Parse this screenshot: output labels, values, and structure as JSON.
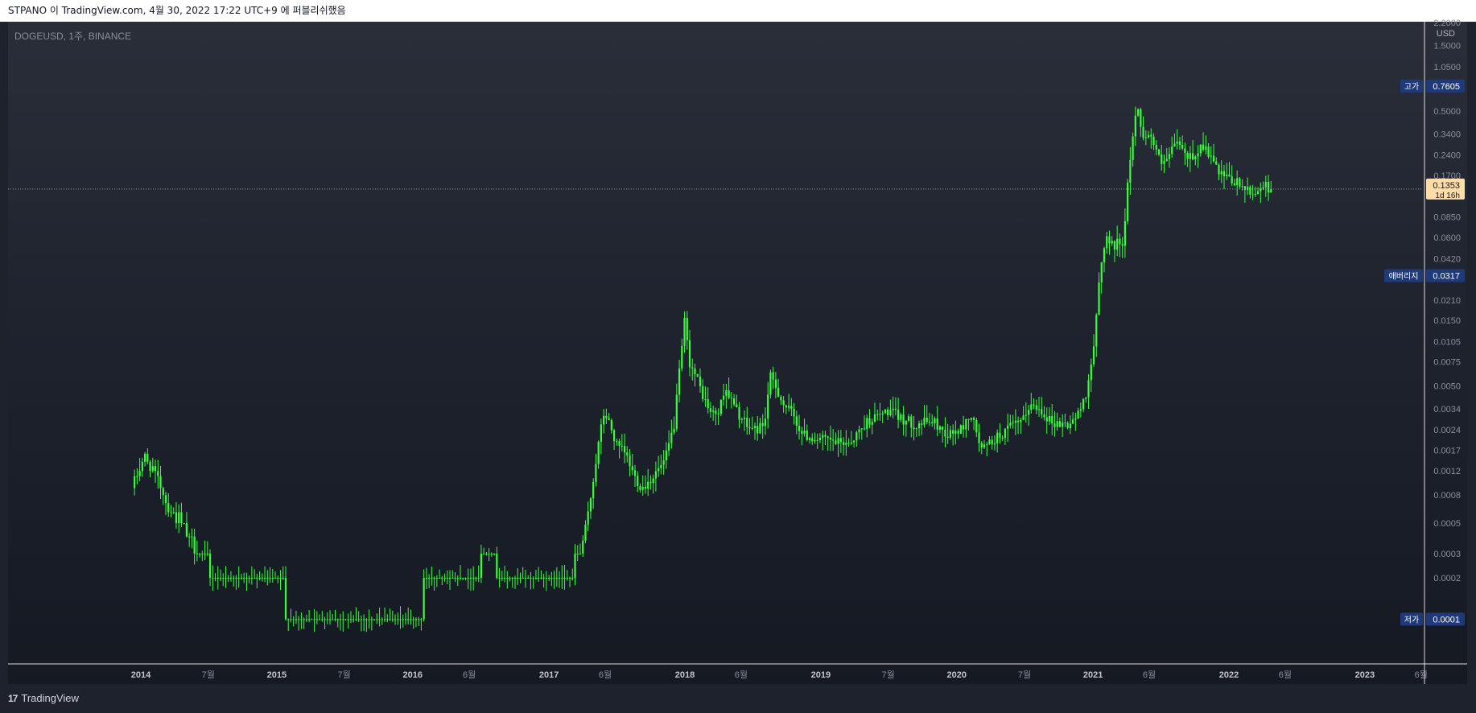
{
  "header": {
    "publish_text": "STPANO 이 TradingView.com, 4월 30, 2022 17:22 UTC+9 에 퍼블리쉬했음"
  },
  "symbol": {
    "label": "DOGEUSD, 1주, BINANCE"
  },
  "footer": {
    "brand_mark": "17",
    "brand_text": "TradingView"
  },
  "colors": {
    "candle": "#39ff3c",
    "axis_text": "#8a8f9c",
    "label_bg": "#1e3a7a",
    "price_bg": "#ffdca8",
    "crosshair": "#ffffff"
  },
  "chart_data": {
    "type": "candlestick",
    "symbol": "DOGEUSD",
    "interval": "1주",
    "exchange": "BINANCE",
    "y_scale": "log",
    "y_unit": "USD",
    "price_ticks": [
      "2.2000",
      "1.5000",
      "1.0500",
      "0.5000",
      "0.3400",
      "0.2400",
      "0.1700",
      "0.0850",
      "0.0600",
      "0.0420",
      "0.0210",
      "0.0150",
      "0.0105",
      "0.0075",
      "0.0050",
      "0.0034",
      "0.0024",
      "0.0017",
      "0.0012",
      "0.0008",
      "0.0005",
      "0.0003",
      "0.0002"
    ],
    "x_tick_labels": [
      {
        "label": "2014",
        "date": "2014-01-01",
        "bold": true
      },
      {
        "label": "7월",
        "date": "2014-07-01",
        "bold": false
      },
      {
        "label": "2015",
        "date": "2015-01-01",
        "bold": true
      },
      {
        "label": "7월",
        "date": "2015-07-01",
        "bold": false
      },
      {
        "label": "2016",
        "date": "2016-01-01",
        "bold": true
      },
      {
        "label": "6월",
        "date": "2016-06-01",
        "bold": false
      },
      {
        "label": "2017",
        "date": "2017-01-01",
        "bold": true
      },
      {
        "label": "6월",
        "date": "2017-06-01",
        "bold": false
      },
      {
        "label": "2018",
        "date": "2018-01-01",
        "bold": true
      },
      {
        "label": "6월",
        "date": "2018-06-01",
        "bold": false
      },
      {
        "label": "2019",
        "date": "2019-01-01",
        "bold": true
      },
      {
        "label": "7월",
        "date": "2019-07-01",
        "bold": false
      },
      {
        "label": "2020",
        "date": "2020-01-01",
        "bold": true
      },
      {
        "label": "7월",
        "date": "2020-07-01",
        "bold": false
      },
      {
        "label": "2021",
        "date": "2021-01-01",
        "bold": true
      },
      {
        "label": "6월",
        "date": "2021-06-01",
        "bold": false
      },
      {
        "label": "2022",
        "date": "2022-01-01",
        "bold": true
      },
      {
        "label": "6월",
        "date": "2022-06-01",
        "bold": false
      },
      {
        "label": "2023",
        "date": "2023-01-01",
        "bold": true
      },
      {
        "label": "6월",
        "date": "2023-06-01",
        "bold": false
      }
    ],
    "markers": [
      {
        "name": "고가",
        "value": "0.7605",
        "price": 0.7605,
        "style": "blue"
      },
      {
        "name": "",
        "value": "0.1353",
        "sub": "1d 16h",
        "price": 0.1353,
        "style": "current"
      },
      {
        "name": "애버리지",
        "value": "0.0317",
        "price": 0.0317,
        "style": "blue"
      },
      {
        "name": "저가",
        "value": "0.0001",
        "price": 0.0001,
        "style": "blue"
      }
    ],
    "price_path": [
      [
        "2013-12-15",
        0.0009
      ],
      [
        "2014-01-01",
        0.0012
      ],
      [
        "2014-01-20",
        0.0015
      ],
      [
        "2014-02-20",
        0.0011
      ],
      [
        "2014-03-20",
        0.0007
      ],
      [
        "2014-05-01",
        0.0005
      ],
      [
        "2014-06-01",
        0.0003
      ],
      [
        "2014-08-01",
        0.0002
      ],
      [
        "2014-10-01",
        0.0002
      ],
      [
        "2015-01-01",
        0.0002
      ],
      [
        "2015-03-01",
        0.0001
      ],
      [
        "2015-06-01",
        0.0001
      ],
      [
        "2015-09-01",
        0.0001
      ],
      [
        "2016-01-01",
        0.0001
      ],
      [
        "2016-03-01",
        0.0002
      ],
      [
        "2016-06-01",
        0.0002
      ],
      [
        "2016-08-01",
        0.0003
      ],
      [
        "2016-10-01",
        0.0002
      ],
      [
        "2017-01-01",
        0.0002
      ],
      [
        "2017-03-01",
        0.0002
      ],
      [
        "2017-04-01",
        0.0003
      ],
      [
        "2017-04-20",
        0.0005
      ],
      [
        "2017-05-10",
        0.0012
      ],
      [
        "2017-05-25",
        0.0022
      ],
      [
        "2017-06-05",
        0.0032
      ],
      [
        "2017-06-20",
        0.0026
      ],
      [
        "2017-07-10",
        0.0018
      ],
      [
        "2017-08-01",
        0.0016
      ],
      [
        "2017-08-25",
        0.0011
      ],
      [
        "2017-09-15",
        0.0009
      ],
      [
        "2017-10-15",
        0.0011
      ],
      [
        "2017-11-15",
        0.0014
      ],
      [
        "2017-12-10",
        0.0026
      ],
      [
        "2017-12-25",
        0.0065
      ],
      [
        "2018-01-07",
        0.0145
      ],
      [
        "2018-01-20",
        0.0075
      ],
      [
        "2018-02-10",
        0.0055
      ],
      [
        "2018-03-01",
        0.004
      ],
      [
        "2018-03-20",
        0.0031
      ],
      [
        "2018-04-10",
        0.0032
      ],
      [
        "2018-04-25",
        0.005
      ],
      [
        "2018-05-10",
        0.004
      ],
      [
        "2018-06-01",
        0.0031
      ],
      [
        "2018-06-25",
        0.0025
      ],
      [
        "2018-07-20",
        0.0024
      ],
      [
        "2018-08-10",
        0.0027
      ],
      [
        "2018-08-25",
        0.0058
      ],
      [
        "2018-09-10",
        0.0049
      ],
      [
        "2018-10-01",
        0.0036
      ],
      [
        "2018-10-25",
        0.0031
      ],
      [
        "2018-11-20",
        0.0022
      ],
      [
        "2018-12-15",
        0.0021
      ],
      [
        "2019-01-20",
        0.002
      ],
      [
        "2019-03-01",
        0.0019
      ],
      [
        "2019-04-01",
        0.002
      ],
      [
        "2019-05-15",
        0.0028
      ],
      [
        "2019-06-10",
        0.003
      ],
      [
        "2019-07-10",
        0.0033
      ],
      [
        "2019-08-10",
        0.0029
      ],
      [
        "2019-09-20",
        0.0026
      ],
      [
        "2019-11-01",
        0.0028
      ],
      [
        "2019-12-15",
        0.0022
      ],
      [
        "2020-01-20",
        0.0024
      ],
      [
        "2020-02-15",
        0.0031
      ],
      [
        "2020-03-15",
        0.0017
      ],
      [
        "2020-04-15",
        0.002
      ],
      [
        "2020-06-01",
        0.0025
      ],
      [
        "2020-07-05",
        0.0028
      ],
      [
        "2020-07-20",
        0.0036
      ],
      [
        "2020-08-20",
        0.0034
      ],
      [
        "2020-09-20",
        0.0027
      ],
      [
        "2020-11-01",
        0.0026
      ],
      [
        "2020-12-01",
        0.0031
      ],
      [
        "2020-12-20",
        0.0045
      ],
      [
        "2021-01-10",
        0.009
      ],
      [
        "2021-01-25",
        0.03
      ],
      [
        "2021-02-10",
        0.062
      ],
      [
        "2021-03-01",
        0.052
      ],
      [
        "2021-04-01",
        0.058
      ],
      [
        "2021-04-15",
        0.2
      ],
      [
        "2021-05-05",
        0.55
      ],
      [
        "2021-05-20",
        0.35
      ],
      [
        "2021-06-15",
        0.32
      ],
      [
        "2021-07-10",
        0.2
      ],
      [
        "2021-08-01",
        0.23
      ],
      [
        "2021-08-20",
        0.31
      ],
      [
        "2021-09-15",
        0.23
      ],
      [
        "2021-10-10",
        0.24
      ],
      [
        "2021-10-28",
        0.29
      ],
      [
        "2021-11-20",
        0.23
      ],
      [
        "2021-12-15",
        0.17
      ],
      [
        "2022-01-15",
        0.155
      ],
      [
        "2022-02-10",
        0.145
      ],
      [
        "2022-03-10",
        0.12
      ],
      [
        "2022-04-05",
        0.145
      ],
      [
        "2022-04-29",
        0.1353
      ]
    ]
  }
}
